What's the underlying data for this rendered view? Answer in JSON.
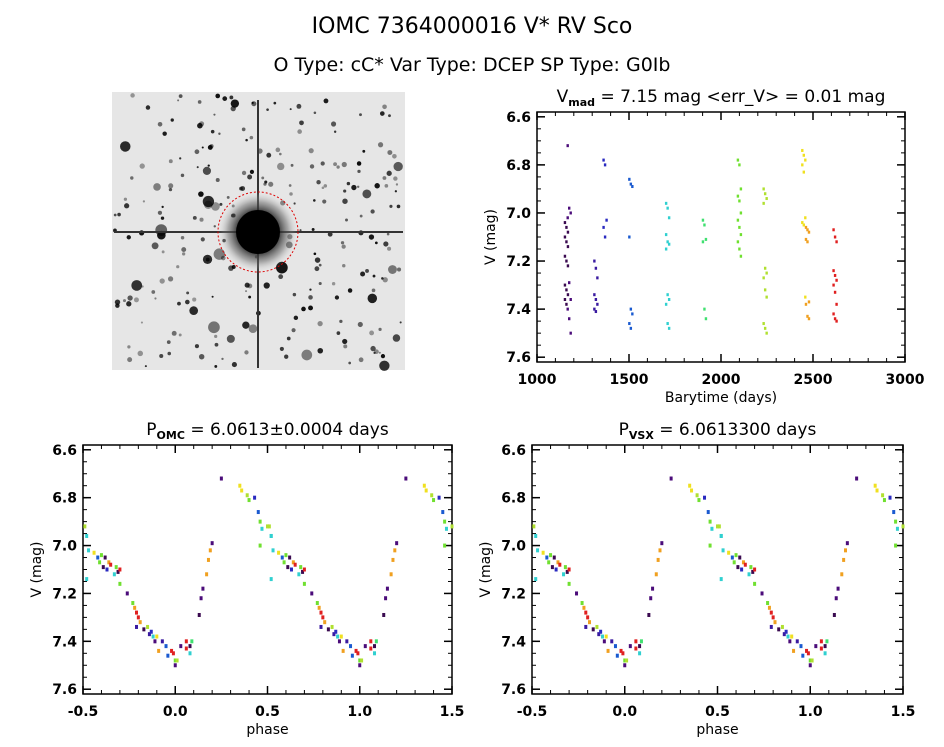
{
  "header": {
    "title": "IOMC 7364000016   V* RV Sco",
    "subtitle": "O Type: cC*   Var Type: DCEP   SP Type: G0Ib"
  },
  "image_panel": {
    "description_icon": "star-field-image"
  },
  "chart_data": [
    {
      "type": "scatter",
      "title_main": "V",
      "title_sub": "mad",
      "title_rest": " = 7.15 mag <err_V> = 0.01 mag",
      "xlabel": "Barytime (days)",
      "ylabel": "V (mag)",
      "xlim": [
        1000,
        3000
      ],
      "ylim": [
        7.62,
        6.58
      ],
      "xticks": [
        "1000",
        "1500",
        "2000",
        "2500",
        "3000"
      ],
      "yticks": [
        "6.6",
        "6.8",
        "7.0",
        "7.2",
        "7.4",
        "7.6"
      ],
      "groups": [
        {
          "t": 1160,
          "color": "#3a0a50",
          "v": [
            7.04,
            7.06,
            7.08,
            7.1,
            7.12,
            7.14,
            7.18,
            7.2,
            7.22,
            7.3,
            7.32,
            7.34,
            7.36,
            7.38
          ]
        },
        {
          "t": 1175,
          "color": "#4b0c7a",
          "v": [
            6.72,
            6.98,
            7.0,
            7.02,
            7.29,
            7.36,
            7.4,
            7.44,
            7.5
          ]
        },
        {
          "t": 1320,
          "color": "#3a1aa0",
          "v": [
            7.2,
            7.23,
            7.27,
            7.34,
            7.36,
            7.38,
            7.4,
            7.41
          ]
        },
        {
          "t": 1370,
          "color": "#2a2ac0",
          "v": [
            6.78,
            6.8,
            7.03,
            7.06,
            7.1
          ]
        },
        {
          "t": 1510,
          "color": "#1a5ad0",
          "v": [
            6.86,
            6.88,
            6.89,
            7.1,
            7.4,
            7.42,
            7.46,
            7.48
          ]
        },
        {
          "t": 1710,
          "color": "#30d0d0",
          "v": [
            6.96,
            6.98,
            7.02,
            7.09,
            7.12,
            7.13,
            7.15,
            7.34,
            7.36,
            7.38,
            7.46,
            7.48
          ]
        },
        {
          "t": 1910,
          "color": "#40e070",
          "v": [
            7.03,
            7.05,
            7.11,
            7.12,
            7.4,
            7.44
          ]
        },
        {
          "t": 2100,
          "color": "#70e030",
          "v": [
            6.78,
            6.8,
            6.9,
            6.93,
            6.95,
            7.0,
            7.03,
            7.06,
            7.09,
            7.12,
            7.15,
            7.18
          ]
        },
        {
          "t": 2240,
          "color": "#b0e030",
          "v": [
            6.9,
            6.92,
            6.94,
            6.96,
            7.23,
            7.25,
            7.27,
            7.32,
            7.35,
            7.46,
            7.48,
            7.5
          ]
        },
        {
          "t": 2450,
          "color": "#f0e020",
          "v": [
            6.74,
            6.76,
            6.78,
            6.8,
            6.83,
            7.02,
            7.04,
            7.05,
            7.35
          ]
        },
        {
          "t": 2470,
          "color": "#f0a020",
          "v": [
            7.06,
            7.07,
            7.08,
            7.11,
            7.12,
            7.37,
            7.38,
            7.43,
            7.44
          ]
        },
        {
          "t": 2620,
          "color": "#e02020",
          "v": [
            7.07,
            7.1,
            7.12,
            7.24,
            7.26,
            7.28,
            7.3,
            7.33,
            7.38,
            7.42,
            7.44,
            7.45
          ]
        }
      ]
    },
    {
      "type": "scatter",
      "title_main": "P",
      "title_sub": "OMC",
      "title_rest": " = 6.0613±0.0004 days",
      "xlabel": "phase",
      "ylabel": "V (mag)",
      "xlim": [
        -0.5,
        1.5
      ],
      "ylim": [
        7.62,
        6.58
      ],
      "xticks": [
        "-0.5",
        "0.0",
        "0.5",
        "1.0",
        "1.5"
      ],
      "yticks": [
        "6.6",
        "6.8",
        "7.0",
        "7.2",
        "7.4",
        "7.6"
      ]
    },
    {
      "type": "scatter",
      "title_main": "P",
      "title_sub": "VSX",
      "title_rest": " = 6.0613300 days",
      "xlabel": "phase",
      "ylabel": "V (mag)",
      "xlim": [
        -0.5,
        1.5
      ],
      "ylim": [
        7.62,
        6.58
      ],
      "xticks": [
        "-0.5",
        "0.0",
        "0.5",
        "1.0",
        "1.5"
      ],
      "yticks": [
        "6.6",
        "6.8",
        "7.0",
        "7.2",
        "7.4",
        "7.6"
      ]
    }
  ],
  "phased_points": [
    [
      -0.49,
      6.92,
      "#b0e030"
    ],
    [
      -0.48,
      6.96,
      "#30d0d0"
    ],
    [
      -0.47,
      7.02,
      "#30d0d0"
    ],
    [
      -0.48,
      7.14,
      "#30d0d0"
    ],
    [
      -0.44,
      7.03,
      "#f0e020"
    ],
    [
      -0.42,
      7.05,
      "#1a5ad0"
    ],
    [
      -0.41,
      7.07,
      "#70e030"
    ],
    [
      -0.4,
      7.04,
      "#70e030"
    ],
    [
      -0.39,
      7.09,
      "#3a0a50"
    ],
    [
      -0.38,
      7.05,
      "#3a0a50"
    ],
    [
      -0.37,
      7.1,
      "#2a2ac0"
    ],
    [
      -0.36,
      7.07,
      "#f0a020"
    ],
    [
      -0.35,
      7.08,
      "#e02020"
    ],
    [
      -0.33,
      7.12,
      "#30d0d0"
    ],
    [
      -0.32,
      7.09,
      "#70e030"
    ],
    [
      -0.31,
      7.11,
      "#3a0a50"
    ],
    [
      -0.3,
      7.16,
      "#70e030"
    ],
    [
      -0.3,
      7.1,
      "#e02020"
    ],
    [
      -0.26,
      7.2,
      "#4b0c7a"
    ],
    [
      -0.23,
      7.24,
      "#70e030"
    ],
    [
      -0.22,
      7.26,
      "#f0a020"
    ],
    [
      -0.21,
      7.28,
      "#e02020"
    ],
    [
      -0.2,
      7.3,
      "#e02020"
    ],
    [
      -0.19,
      7.32,
      "#f0a020"
    ],
    [
      -0.21,
      7.34,
      "#3a1aa0"
    ],
    [
      -0.17,
      7.35,
      "#3a0a50"
    ],
    [
      -0.15,
      7.34,
      "#b0e030"
    ],
    [
      -0.14,
      7.37,
      "#3a1aa0"
    ],
    [
      -0.13,
      7.36,
      "#2a2ac0"
    ],
    [
      -0.12,
      7.38,
      "#30d0d0"
    ],
    [
      -0.11,
      7.4,
      "#4b0c7a"
    ],
    [
      -0.1,
      7.38,
      "#f0e020"
    ],
    [
      -0.09,
      7.44,
      "#f0a020"
    ],
    [
      -0.07,
      7.4,
      "#3a1aa0"
    ],
    [
      -0.05,
      7.42,
      "#1a5ad0"
    ],
    [
      -0.04,
      7.46,
      "#1a5ad0"
    ],
    [
      -0.02,
      7.44,
      "#e02020"
    ],
    [
      -0.01,
      7.45,
      "#e02020"
    ],
    [
      0.0,
      7.48,
      "#70e030"
    ],
    [
      0.0,
      7.5,
      "#4b0c7a"
    ],
    [
      0.01,
      7.48,
      "#b0e030"
    ],
    [
      0.03,
      7.42,
      "#4b0c7a"
    ],
    [
      0.06,
      7.4,
      "#e02020"
    ],
    [
      0.06,
      7.43,
      "#e02020"
    ],
    [
      0.08,
      7.42,
      "#3a0a50"
    ],
    [
      0.09,
      7.4,
      "#40e070"
    ],
    [
      0.08,
      7.45,
      "#30d0d0"
    ],
    [
      0.13,
      7.29,
      "#3a0a50"
    ],
    [
      0.14,
      7.22,
      "#4b0c7a"
    ],
    [
      0.15,
      7.18,
      "#4b0c7a"
    ],
    [
      0.17,
      7.12,
      "#f0a020"
    ],
    [
      0.18,
      7.06,
      "#f0a020"
    ],
    [
      0.19,
      7.02,
      "#f0a020"
    ],
    [
      0.2,
      6.99,
      "#4b0c7a"
    ],
    [
      0.25,
      6.72,
      "#4b0c7a"
    ],
    [
      0.35,
      6.75,
      "#f0e020"
    ],
    [
      0.36,
      6.77,
      "#f0e020"
    ],
    [
      0.39,
      6.79,
      "#b0e030"
    ],
    [
      0.4,
      6.81,
      "#70e030"
    ],
    [
      0.43,
      6.8,
      "#2a2ac0"
    ],
    [
      0.45,
      6.86,
      "#1a5ad0"
    ],
    [
      0.46,
      6.9,
      "#70e030"
    ],
    [
      0.46,
      7.0,
      "#70e030"
    ],
    [
      0.47,
      6.93,
      "#30d0d0"
    ],
    [
      0.5,
      6.92,
      "#b0e030"
    ],
    [
      0.52,
      6.96,
      "#30d0d0"
    ]
  ]
}
